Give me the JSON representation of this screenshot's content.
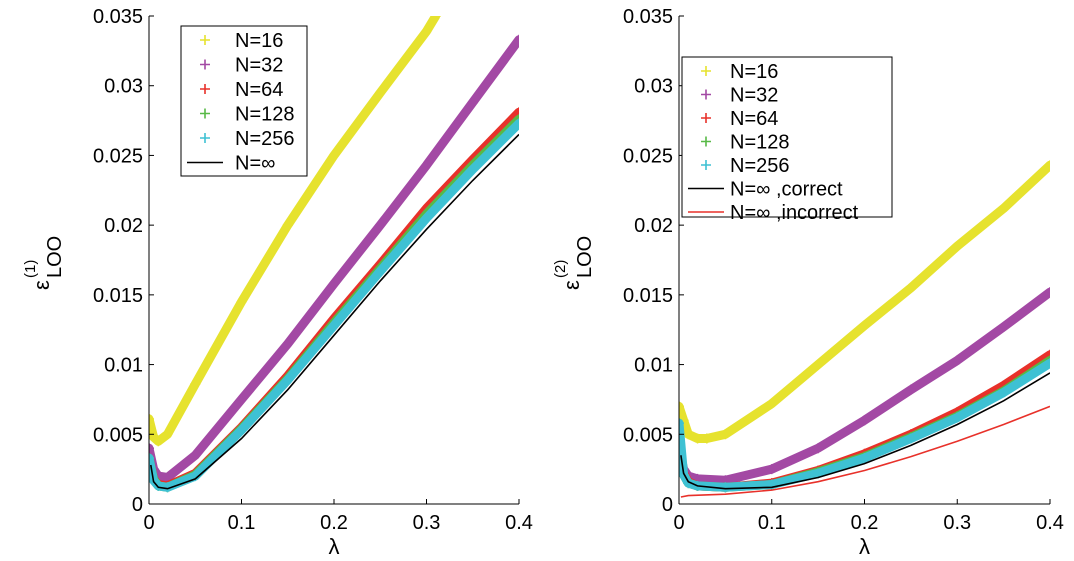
{
  "chart_data": [
    {
      "type": "scatter",
      "title": "",
      "xlabel": "λ",
      "ylabel_symbol": "ε",
      "ylabel_superscript": "(1)",
      "ylabel_subscript": "LOO",
      "xlim": [
        0,
        0.4
      ],
      "ylim": [
        0,
        0.035
      ],
      "xticks": [
        "0",
        "0.1",
        "0.2",
        "0.3",
        "0.4"
      ],
      "xtick_values": [
        0,
        0.1,
        0.2,
        0.3,
        0.4
      ],
      "yticks": [
        "0",
        "0.005",
        "0.01",
        "0.015",
        "0.02",
        "0.025",
        "0.03",
        "0.035"
      ],
      "ytick_values": [
        0,
        0.005,
        0.01,
        0.015,
        0.02,
        0.025,
        0.03,
        0.035
      ],
      "grid": false,
      "legend_position": "top-left",
      "series": [
        {
          "name": "N=16",
          "marker": "+",
          "color": "#E6E22E",
          "x": [
            0,
            0.005,
            0.01,
            0.02,
            0.05,
            0.1,
            0.15,
            0.2,
            0.25,
            0.3,
            0.31
          ],
          "y": [
            0.0061,
            0.0048,
            0.0045,
            0.005,
            0.0086,
            0.0145,
            0.02,
            0.025,
            0.0295,
            0.0339,
            0.035
          ]
        },
        {
          "name": "N=32",
          "marker": "+",
          "color": "#A349A4",
          "x": [
            0,
            0.005,
            0.01,
            0.02,
            0.05,
            0.1,
            0.15,
            0.2,
            0.25,
            0.3,
            0.35,
            0.4
          ],
          "y": [
            0.004,
            0.0025,
            0.002,
            0.0019,
            0.0035,
            0.0075,
            0.0115,
            0.0158,
            0.02,
            0.0243,
            0.0288,
            0.0333
          ]
        },
        {
          "name": "N=64",
          "marker": "+",
          "color": "#E8312A",
          "x": [
            0,
            0.005,
            0.01,
            0.02,
            0.05,
            0.1,
            0.15,
            0.2,
            0.25,
            0.3,
            0.35,
            0.4
          ],
          "y": [
            0.0033,
            0.0018,
            0.0014,
            0.0013,
            0.0022,
            0.0055,
            0.0092,
            0.0133,
            0.0172,
            0.0212,
            0.0247,
            0.0281
          ]
        },
        {
          "name": "N=128",
          "marker": "+",
          "color": "#58B947",
          "x": [
            0,
            0.005,
            0.01,
            0.02,
            0.05,
            0.1,
            0.15,
            0.2,
            0.25,
            0.3,
            0.35,
            0.4
          ],
          "y": [
            0.0033,
            0.0018,
            0.0013,
            0.0012,
            0.0021,
            0.0054,
            0.009,
            0.013,
            0.0169,
            0.0208,
            0.0243,
            0.0276
          ]
        },
        {
          "name": "N=256",
          "marker": "+",
          "color": "#3EC1D3",
          "x": [
            0,
            0.005,
            0.01,
            0.02,
            0.05,
            0.1,
            0.15,
            0.2,
            0.25,
            0.3,
            0.35,
            0.4
          ],
          "y": [
            0.0033,
            0.0017,
            0.0013,
            0.0012,
            0.002,
            0.0053,
            0.0089,
            0.0128,
            0.0167,
            0.0205,
            0.024,
            0.0273
          ]
        },
        {
          "name": "N=∞",
          "marker": "line",
          "color": "#000000",
          "x": [
            0.002,
            0.005,
            0.01,
            0.02,
            0.05,
            0.1,
            0.15,
            0.2,
            0.25,
            0.3,
            0.35,
            0.4
          ],
          "y": [
            0.0028,
            0.0016,
            0.0012,
            0.0011,
            0.0018,
            0.0047,
            0.0082,
            0.0121,
            0.016,
            0.0197,
            0.0232,
            0.0265
          ]
        }
      ]
    },
    {
      "type": "scatter",
      "title": "",
      "xlabel": "λ",
      "ylabel_symbol": "ε",
      "ylabel_superscript": "(2)",
      "ylabel_subscript": "LOO",
      "xlim": [
        0,
        0.4
      ],
      "ylim": [
        0,
        0.035
      ],
      "xticks": [
        "0",
        "0.1",
        "0.2",
        "0.3",
        "0.4"
      ],
      "xtick_values": [
        0,
        0.1,
        0.2,
        0.3,
        0.4
      ],
      "yticks": [
        "0",
        "0.005",
        "0.01",
        "0.015",
        "0.02",
        "0.025",
        "0.03",
        "0.035"
      ],
      "ytick_values": [
        0,
        0.005,
        0.01,
        0.015,
        0.02,
        0.025,
        0.03,
        0.035
      ],
      "grid": false,
      "legend_position": "top-left",
      "series": [
        {
          "name": "N=16",
          "marker": "+",
          "color": "#E6E22E",
          "x": [
            0,
            0.005,
            0.01,
            0.02,
            0.03,
            0.05,
            0.1,
            0.15,
            0.2,
            0.25,
            0.3,
            0.35,
            0.4
          ],
          "y": [
            0.007,
            0.006,
            0.005,
            0.0047,
            0.0047,
            0.005,
            0.0072,
            0.01,
            0.0128,
            0.0155,
            0.0185,
            0.0212,
            0.0243
          ]
        },
        {
          "name": "N=32",
          "marker": "+",
          "color": "#A349A4",
          "x": [
            0,
            0.005,
            0.01,
            0.02,
            0.05,
            0.1,
            0.15,
            0.2,
            0.25,
            0.3,
            0.35,
            0.4
          ],
          "y": [
            0.004,
            0.0025,
            0.002,
            0.0018,
            0.0017,
            0.0025,
            0.004,
            0.006,
            0.0082,
            0.0103,
            0.0127,
            0.0152
          ]
        },
        {
          "name": "N=64",
          "marker": "+",
          "color": "#E8312A",
          "x": [
            0,
            0.005,
            0.01,
            0.02,
            0.05,
            0.1,
            0.15,
            0.2,
            0.25,
            0.3,
            0.35,
            0.4
          ],
          "y": [
            0.0045,
            0.0022,
            0.0016,
            0.0013,
            0.0012,
            0.0015,
            0.0024,
            0.0036,
            0.005,
            0.0066,
            0.0085,
            0.0107
          ]
        },
        {
          "name": "N=128",
          "marker": "+",
          "color": "#58B947",
          "x": [
            0,
            0.005,
            0.01,
            0.02,
            0.05,
            0.1,
            0.15,
            0.2,
            0.25,
            0.3,
            0.35,
            0.4
          ],
          "y": [
            0.0045,
            0.0021,
            0.0015,
            0.0013,
            0.0012,
            0.0014,
            0.0023,
            0.0034,
            0.0048,
            0.0063,
            0.0081,
            0.0103
          ]
        },
        {
          "name": "N=256",
          "marker": "+",
          "color": "#3EC1D3",
          "x": [
            0,
            0.005,
            0.01,
            0.02,
            0.05,
            0.1,
            0.15,
            0.2,
            0.25,
            0.3,
            0.35,
            0.4
          ],
          "y": [
            0.0058,
            0.0021,
            0.0015,
            0.0013,
            0.0012,
            0.0014,
            0.0022,
            0.0033,
            0.0047,
            0.0062,
            0.008,
            0.0101
          ]
        },
        {
          "name": "N=∞ ,correct",
          "marker": "line",
          "color": "#000000",
          "x": [
            0.002,
            0.005,
            0.01,
            0.02,
            0.05,
            0.1,
            0.15,
            0.2,
            0.25,
            0.3,
            0.35,
            0.4
          ],
          "y": [
            0.0035,
            0.0022,
            0.0016,
            0.0013,
            0.0011,
            0.0012,
            0.0019,
            0.0029,
            0.0042,
            0.0057,
            0.0074,
            0.0094
          ]
        },
        {
          "name": "N=∞ ,incorrect",
          "marker": "line",
          "color": "#E8312A",
          "x": [
            0.002,
            0.01,
            0.05,
            0.1,
            0.15,
            0.2,
            0.25,
            0.3,
            0.35,
            0.4
          ],
          "y": [
            0.0005,
            0.0006,
            0.0007,
            0.001,
            0.0016,
            0.0024,
            0.0034,
            0.0045,
            0.0057,
            0.007
          ]
        }
      ]
    }
  ]
}
